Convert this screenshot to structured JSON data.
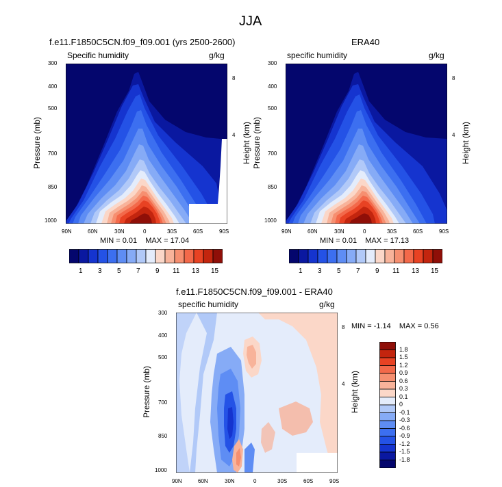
{
  "figure": {
    "title": "JJA"
  },
  "chart_data": [
    {
      "type": "heatmap",
      "title": "f.e11.F1850C5CN.f09_f09.001 (yrs 2500-2600)",
      "left_label": "Specific humidity",
      "right_label": "g/kg",
      "ylabel": "Pressure (mb)",
      "ylabel_right": "Height (km)",
      "x_ticks": [
        "90N",
        "60N",
        "30N",
        "0",
        "30S",
        "60S",
        "90S"
      ],
      "y_ticks": [
        "300",
        "400",
        "500",
        "700",
        "850",
        "1000"
      ],
      "y_ticks_right": [
        "8",
        "4"
      ],
      "stats": {
        "min_label": "MIN = ",
        "min": "0.01",
        "max_label": "MAX = ",
        "max": "17.04"
      },
      "colorbar": {
        "labels": [
          "1",
          "3",
          "5",
          "7",
          "9",
          "11",
          "13",
          "15"
        ]
      },
      "masked_region": true
    },
    {
      "type": "heatmap",
      "title": "ERA40",
      "left_label": "specific humidity",
      "right_label": "g/kg",
      "ylabel": "Pressure (mb)",
      "ylabel_right": "Height (km)",
      "x_ticks": [
        "90N",
        "60N",
        "30N",
        "0",
        "30S",
        "60S",
        "90S"
      ],
      "y_ticks": [
        "300",
        "400",
        "500",
        "700",
        "850",
        "1000"
      ],
      "y_ticks_right": [
        "8",
        "4"
      ],
      "stats": {
        "min_label": "MIN = ",
        "min": "0.01",
        "max_label": "MAX = ",
        "max": "17.13"
      },
      "colorbar": {
        "labels": [
          "1",
          "3",
          "5",
          "7",
          "9",
          "11",
          "13",
          "15"
        ]
      },
      "masked_region": false
    },
    {
      "type": "heatmap",
      "title": "f.e11.F1850C5CN.f09_f09.001 - ERA40",
      "left_label": "specific humidity",
      "right_label": "g/kg",
      "ylabel": "Pressure (mb)",
      "ylabel_right": "Height (km)",
      "x_ticks": [
        "90N",
        "60N",
        "30N",
        "0",
        "30S",
        "60S",
        "90S"
      ],
      "y_ticks": [
        "300",
        "400",
        "500",
        "700",
        "850",
        "1000"
      ],
      "y_ticks_right": [
        "8",
        "4"
      ],
      "stats": {
        "min_label": "MIN = ",
        "min": "-1.14",
        "max_label": "MAX = ",
        "max": "0.56"
      },
      "colorbar": {
        "labels": [
          "1.8",
          "1.5",
          "1.2",
          "0.9",
          "0.6",
          "0.3",
          "0.1",
          "0",
          "-0.1",
          "-0.3",
          "-0.6",
          "-0.9",
          "-1.2",
          "-1.5",
          "-1.8"
        ]
      }
    }
  ],
  "palette": {
    "seq": [
      "#04066d",
      "#0a18a0",
      "#1534cf",
      "#2452e6",
      "#3c6ff0",
      "#5e8df4",
      "#86abf6",
      "#b1c9f8",
      "#e4ecfb",
      "#fbd7c8",
      "#f8b39a",
      "#f68f70",
      "#f3694a",
      "#e84223",
      "#c3250e",
      "#8f0f08"
    ],
    "div": [
      "#8f0f08",
      "#c3250e",
      "#e84223",
      "#f3694a",
      "#f68f70",
      "#f8b39a",
      "#fbd7c8",
      "#e4ecfb",
      "#b1c9f8",
      "#86abf6",
      "#5e8df4",
      "#3c6ff0",
      "#2452e6",
      "#1534cf",
      "#0a18a0",
      "#04066d"
    ]
  }
}
